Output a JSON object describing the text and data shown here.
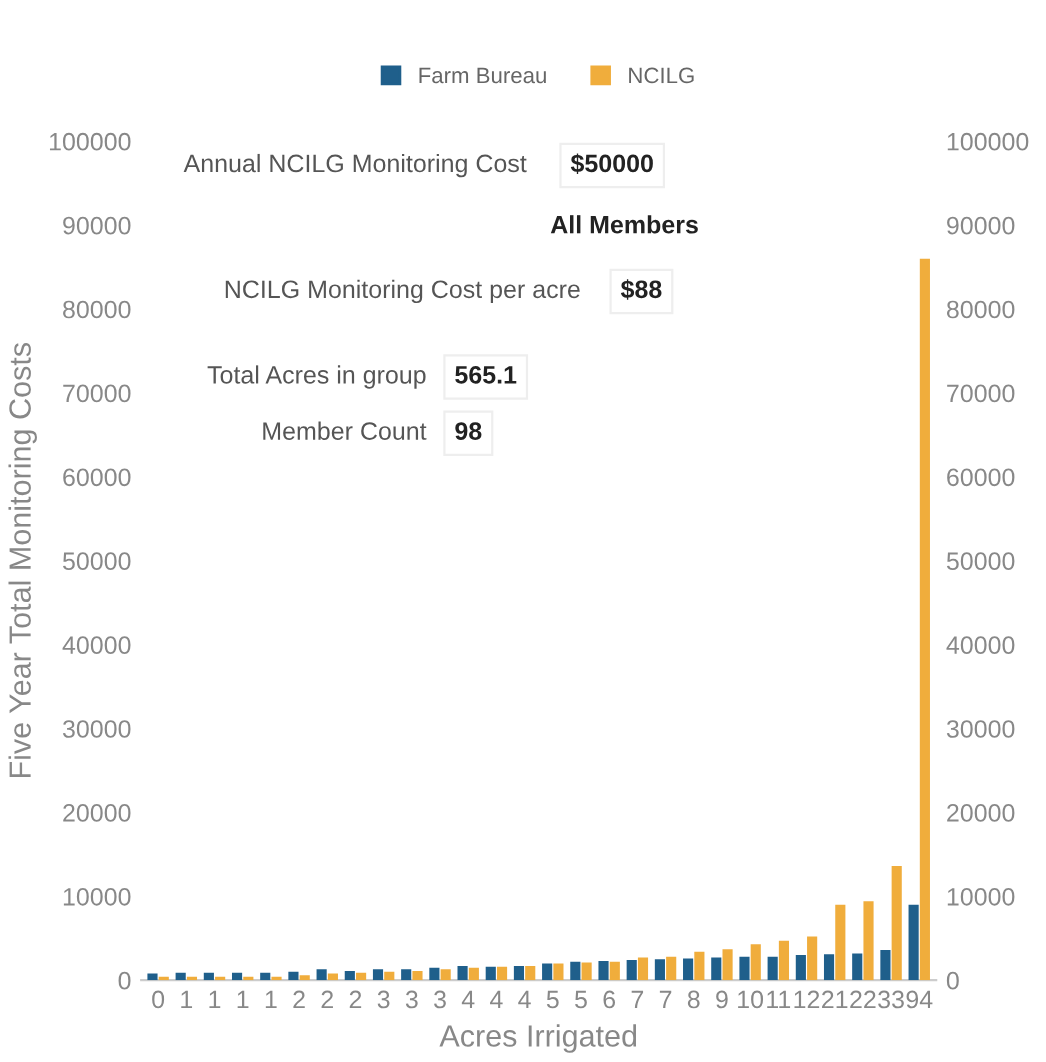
{
  "chart_data": {
    "type": "bar",
    "xlabel": "Acres Irrigated",
    "ylabel": "Five Year Total Monitoring Costs",
    "categories": [
      "0",
      "1",
      "1",
      "1",
      "1",
      "2",
      "2",
      "2",
      "3",
      "3",
      "3",
      "4",
      "4",
      "4",
      "5",
      "5",
      "6",
      "7",
      "7",
      "8",
      "9",
      "10",
      "11",
      "12",
      "21",
      "22",
      "33",
      "94"
    ],
    "series": [
      {
        "name": "Farm Bureau",
        "color": "#1f5f8b",
        "values": [
          800,
          900,
          900,
          900,
          900,
          1000,
          1300,
          1100,
          1300,
          1300,
          1500,
          1700,
          1600,
          1700,
          2000,
          2200,
          2300,
          2400,
          2500,
          2600,
          2700,
          2800,
          2800,
          3000,
          3100,
          3200,
          3600,
          9000
        ]
      },
      {
        "name": "NCILG",
        "color": "#f0ad3c",
        "values": [
          400,
          400,
          400,
          400,
          400,
          600,
          800,
          900,
          1000,
          1100,
          1300,
          1500,
          1600,
          1700,
          2000,
          2100,
          2200,
          2700,
          2800,
          3400,
          3700,
          4300,
          4700,
          5200,
          9000,
          9400,
          13600,
          86000
        ]
      }
    ],
    "ylim": [
      0,
      100000
    ],
    "yticks": [
      0,
      10000,
      20000,
      30000,
      40000,
      50000,
      60000,
      70000,
      80000,
      90000,
      100000
    ],
    "y2lim": [
      0,
      100000
    ],
    "y2ticks": [
      0,
      10000,
      20000,
      30000,
      40000,
      50000,
      60000,
      70000,
      80000,
      90000,
      100000
    ],
    "grid": false,
    "legend": "top",
    "annotations": [
      "Annual NCILG Monitoring Cost",
      "$50000",
      "All Members",
      "NCILG Monitoring Cost per acre",
      "$88",
      "Total Acres in group",
      "565.1",
      "Member Count",
      "98"
    ]
  }
}
